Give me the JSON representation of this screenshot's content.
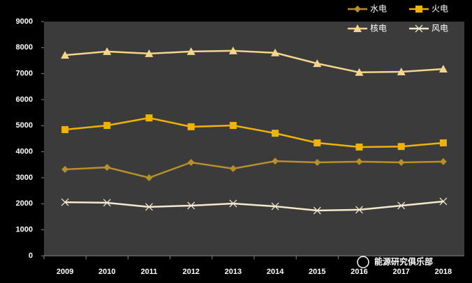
{
  "chart_data": {
    "type": "line",
    "categories": [
      "2009",
      "2010",
      "2011",
      "2012",
      "2013",
      "2014",
      "2015",
      "2016",
      "2017",
      "2018"
    ],
    "series": [
      {
        "name": "水电",
        "color": "#b8902a",
        "marker": "diamond",
        "values": [
          3320,
          3400,
          3000,
          3590,
          3350,
          3640,
          3590,
          3620,
          3590,
          3620
        ]
      },
      {
        "name": "火电",
        "color": "#f0b400",
        "marker": "square",
        "values": [
          4850,
          5010,
          5300,
          4960,
          5010,
          4710,
          4340,
          4180,
          4200,
          4340
        ]
      },
      {
        "name": "核电",
        "color": "#f5d58a",
        "marker": "triangle",
        "values": [
          7710,
          7850,
          7770,
          7850,
          7880,
          7800,
          7390,
          7050,
          7070,
          7180
        ]
      },
      {
        "name": "风电",
        "color": "#f5e8cf",
        "marker": "x",
        "values": [
          2060,
          2040,
          1880,
          1930,
          2010,
          1900,
          1740,
          1770,
          1930,
          2090
        ]
      }
    ],
    "ylim": [
      0,
      9000
    ],
    "yticks": [
      0,
      1000,
      2000,
      3000,
      4000,
      5000,
      6000,
      7000,
      8000,
      9000
    ],
    "legend": "top-right",
    "watermark": "能源研究俱乐部"
  }
}
